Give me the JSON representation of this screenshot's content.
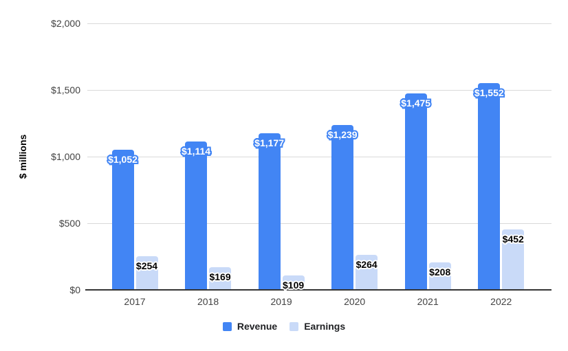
{
  "chart_data": {
    "type": "bar",
    "title": "",
    "categories": [
      "2017",
      "2018",
      "2019",
      "2020",
      "2021",
      "2022"
    ],
    "series": [
      {
        "name": "Revenue",
        "color": "#4285f4",
        "values": [
          1052,
          1114,
          1177,
          1239,
          1475,
          1552
        ],
        "data_labels": [
          "$1,052",
          "$1,114",
          "$1,177",
          "$1,239",
          "$1,475",
          "$1,552"
        ],
        "label_text_color": "#ffffff",
        "label_outline_color": "#4285f4"
      },
      {
        "name": "Earnings",
        "color": "#c9daf8",
        "values": [
          254,
          169,
          109,
          264,
          208,
          452
        ],
        "data_labels": [
          "$254",
          "$169",
          "$109",
          "$264",
          "$208",
          "$452"
        ],
        "label_text_color": "#000000",
        "label_outline_color": "#ffffff"
      }
    ],
    "xlabel": "",
    "ylabel": "$ millions",
    "ylim": [
      0,
      2000
    ],
    "yticks": [
      {
        "value": 0,
        "label": "$0"
      },
      {
        "value": 500,
        "label": "$500"
      },
      {
        "value": 1000,
        "label": "$1,000"
      },
      {
        "value": 1500,
        "label": "$1,500"
      },
      {
        "value": 2000,
        "label": "$2,000"
      }
    ],
    "grid": true,
    "legend_position": "bottom",
    "colors": {
      "gridline": "#d9d9d9",
      "axis_line": "#333333",
      "tick_label": "#424242",
      "legend_text": "#202124",
      "background": "#ffffff"
    }
  }
}
